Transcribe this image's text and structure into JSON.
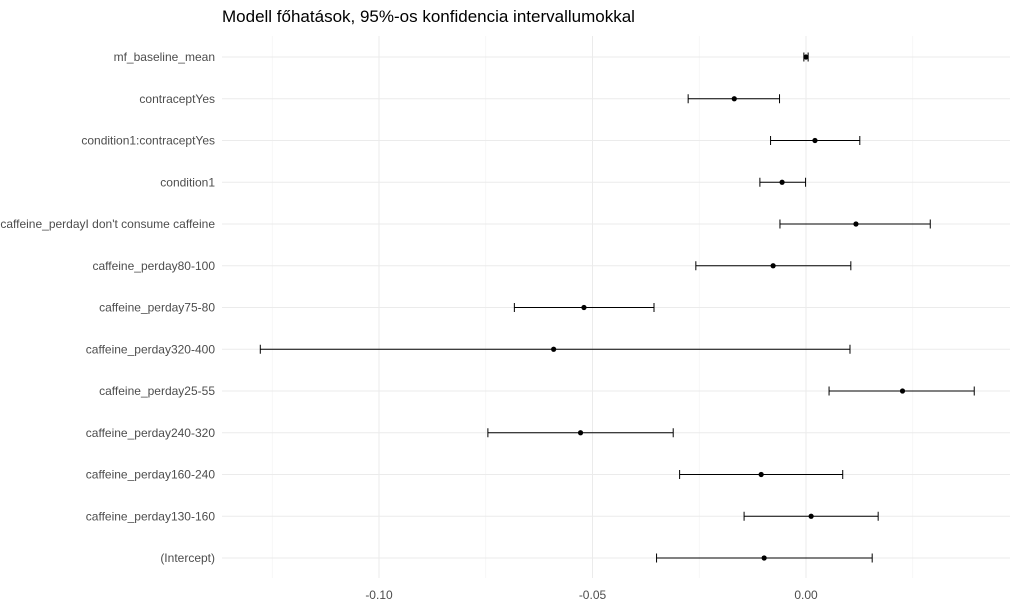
{
  "chart_data": {
    "type": "scatter",
    "subtype": "forest-plot",
    "title": "Modell főhatások, 95%-os konfidencia intervallumokkal",
    "xlabel": "",
    "ylabel": "",
    "xlim": [
      -0.1275,
      0.047
    ],
    "xticks": [
      {
        "value": -0.1,
        "label": "-0.10"
      },
      {
        "value": -0.05,
        "label": "-0.05"
      },
      {
        "value": 0.0,
        "label": "0.00"
      }
    ],
    "grid": true,
    "terms": [
      {
        "label": "mf_baseline_mean",
        "estimate": 0.0,
        "lower": -0.0005,
        "upper": 0.0005
      },
      {
        "label": "contraceptYes",
        "estimate": -0.0168,
        "lower": -0.0276,
        "upper": -0.0062
      },
      {
        "label": "condition1:contraceptYes",
        "estimate": 0.0021,
        "lower": -0.0083,
        "upper": 0.0126
      },
      {
        "label": "condition1",
        "estimate": -0.0056,
        "lower": -0.0108,
        "upper": -0.0001
      },
      {
        "label": "caffeine_perdayI don't consume caffeine",
        "estimate": 0.0117,
        "lower": -0.0061,
        "upper": 0.0291
      },
      {
        "label": "caffeine_perday80-100",
        "estimate": -0.0077,
        "lower": -0.0258,
        "upper": 0.0105
      },
      {
        "label": "caffeine_perday75-80",
        "estimate": -0.052,
        "lower": -0.0683,
        "upper": -0.0356
      },
      {
        "label": "caffeine_perday320-400",
        "estimate": -0.0591,
        "lower": -0.1278,
        "upper": 0.0103
      },
      {
        "label": "caffeine_perday25-55",
        "estimate": 0.0226,
        "lower": 0.0054,
        "upper": 0.0394
      },
      {
        "label": "caffeine_perday240-320",
        "estimate": -0.0528,
        "lower": -0.0745,
        "upper": -0.0311
      },
      {
        "label": "caffeine_perday160-240",
        "estimate": -0.0105,
        "lower": -0.0296,
        "upper": 0.0086
      },
      {
        "label": "caffeine_perday130-160",
        "estimate": 0.0012,
        "lower": -0.0145,
        "upper": 0.0169
      },
      {
        "label": "(Intercept)",
        "estimate": -0.0098,
        "lower": -0.035,
        "upper": 0.0155
      }
    ]
  }
}
